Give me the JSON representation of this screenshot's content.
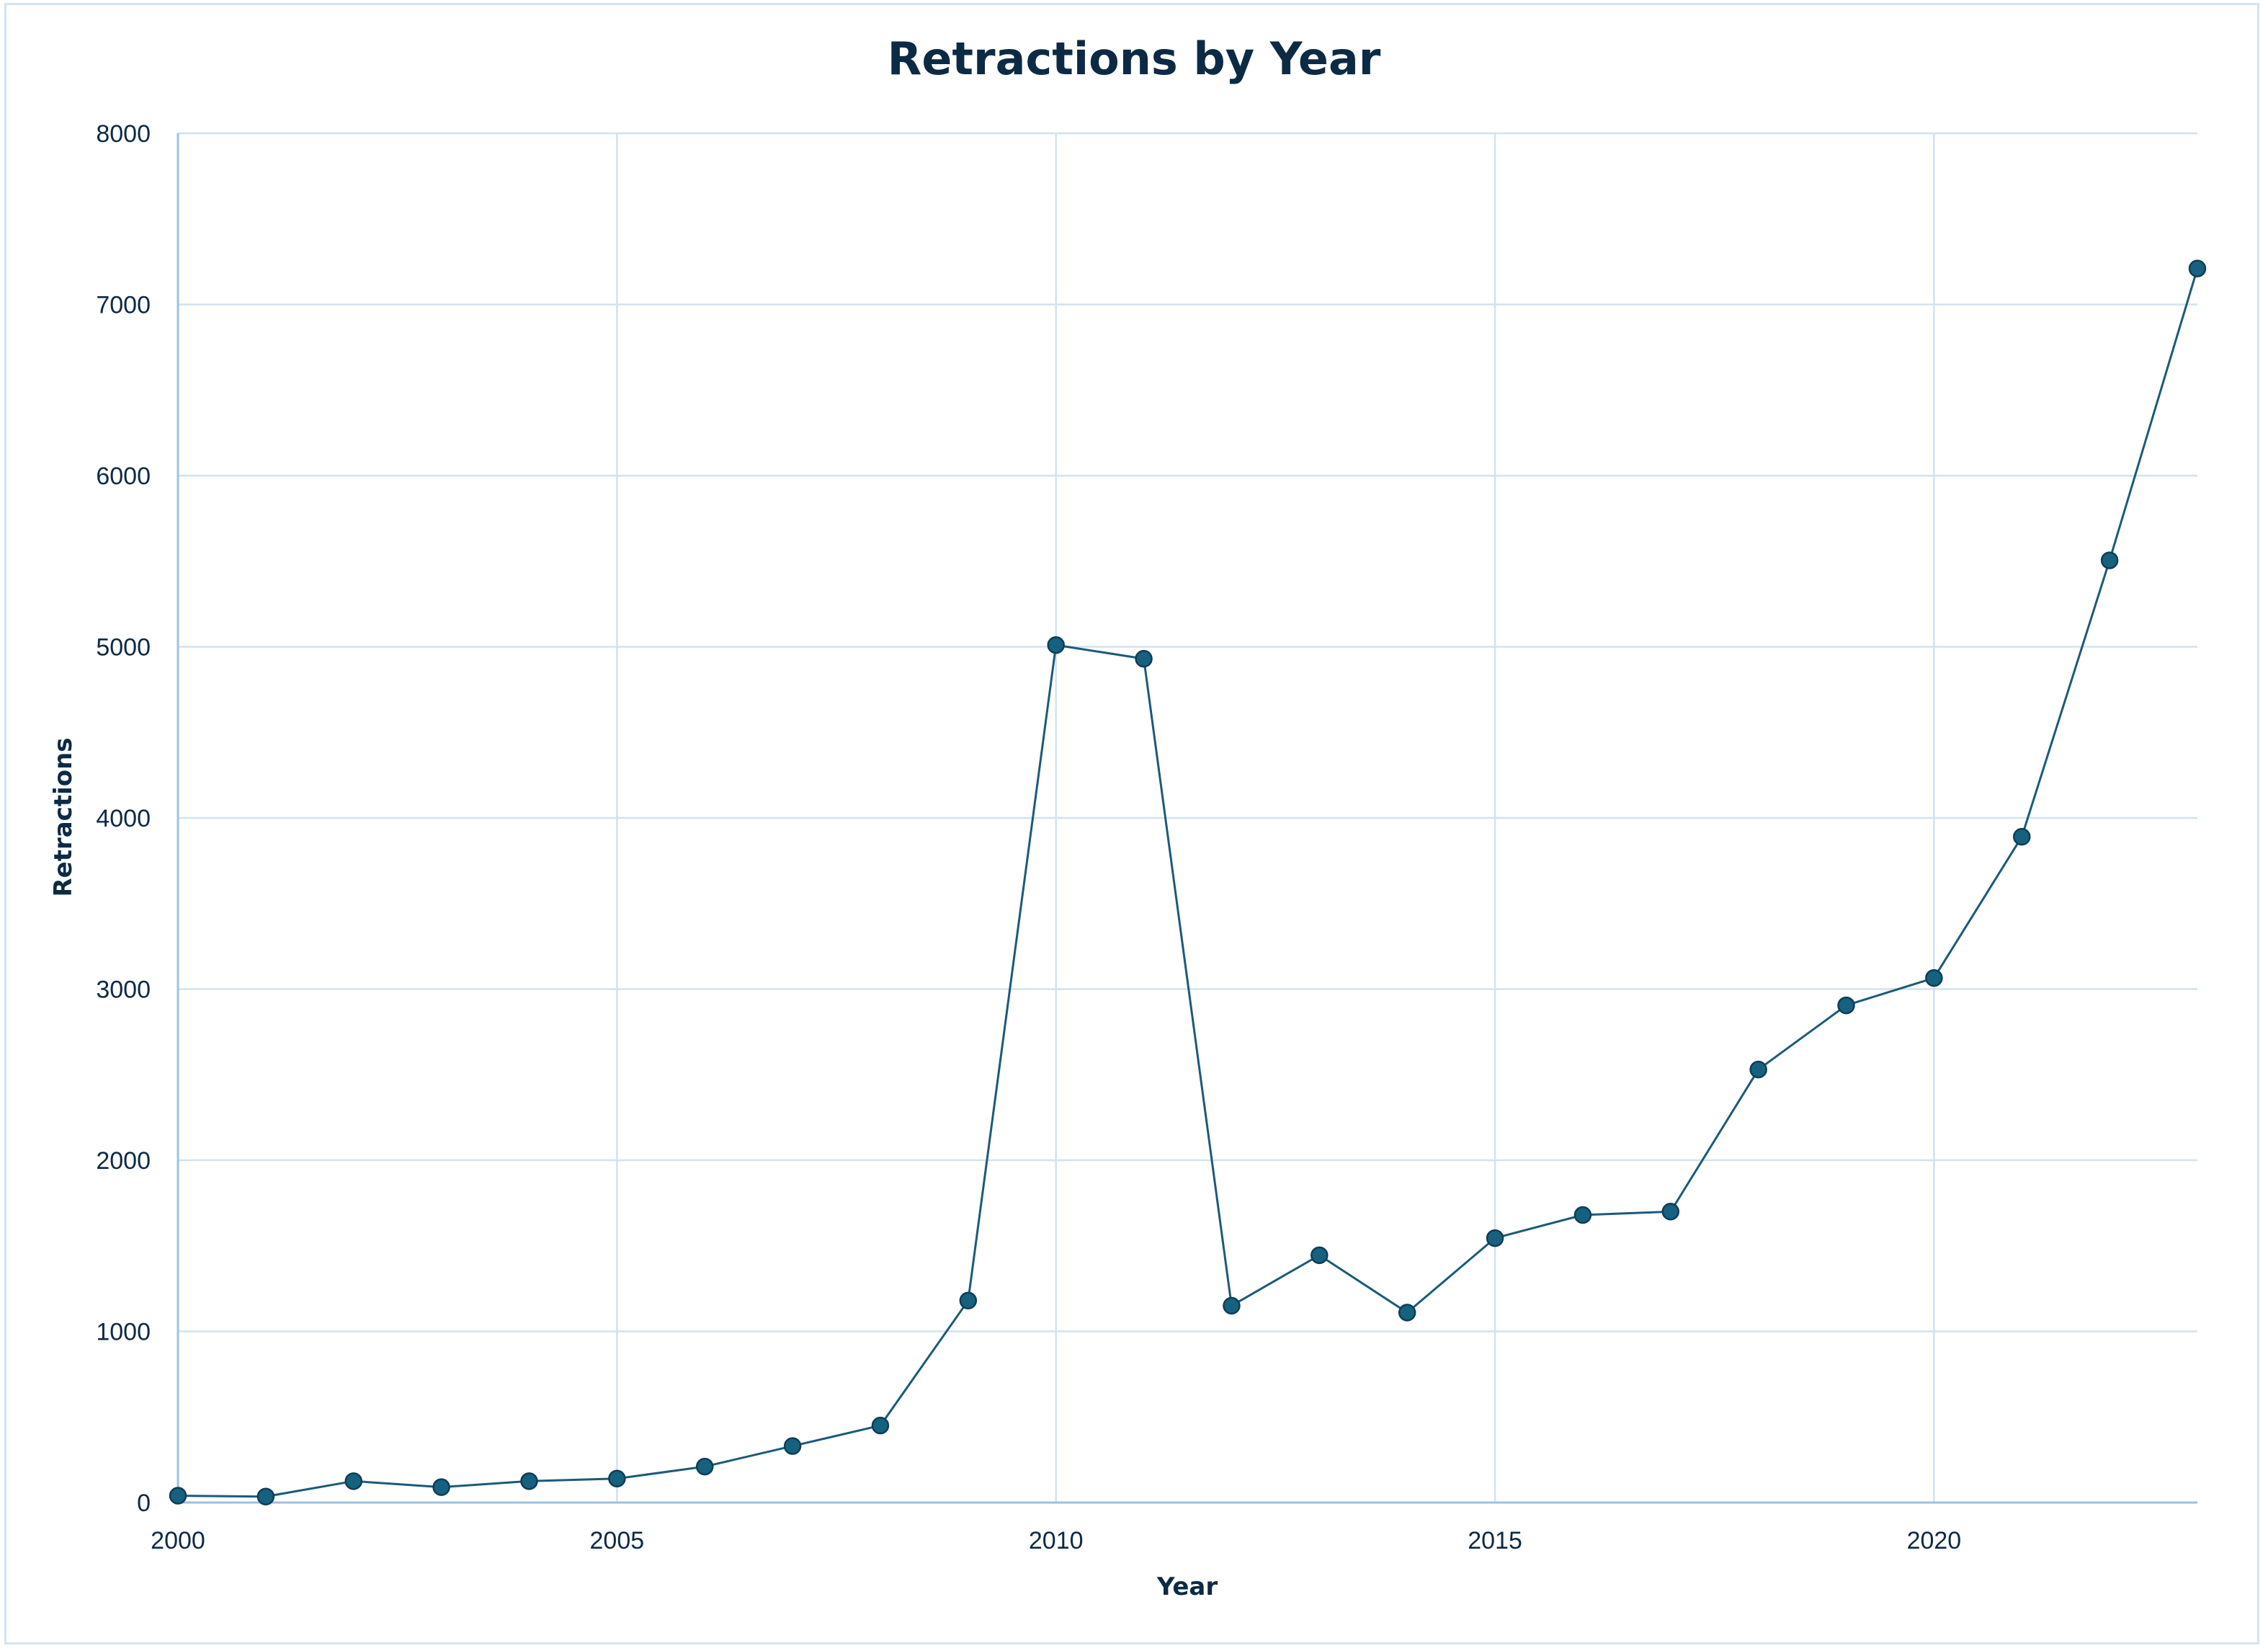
{
  "chart_data": {
    "type": "line",
    "title": "Retractions by Year",
    "xlabel": "Year",
    "ylabel": "Retractions",
    "xlim": [
      2000,
      2023
    ],
    "ylim": [
      0,
      8000
    ],
    "x_ticks": [
      2000,
      2005,
      2010,
      2015,
      2020
    ],
    "y_ticks": [
      0,
      1000,
      2000,
      3000,
      4000,
      5000,
      6000,
      7000,
      8000
    ],
    "grid": true,
    "legend": false,
    "colors": {
      "line": "#1b5a7a",
      "marker": "#16617f",
      "grid": "#d2e2ef",
      "axis": "#9cc0e0",
      "text": "#0d2a45"
    },
    "x": [
      2000,
      2001,
      2002,
      2003,
      2004,
      2005,
      2006,
      2007,
      2008,
      2009,
      2010,
      2011,
      2012,
      2013,
      2014,
      2015,
      2016,
      2017,
      2018,
      2019,
      2020,
      2021,
      2022,
      2023
    ],
    "series": [
      {
        "values": [
          40,
          35,
          125,
          90,
          125,
          140,
          210,
          330,
          450,
          1180,
          5010,
          4930,
          1150,
          1445,
          1110,
          1545,
          1680,
          1700,
          2530,
          2905,
          3065,
          3890,
          5505,
          7210
        ]
      }
    ]
  }
}
